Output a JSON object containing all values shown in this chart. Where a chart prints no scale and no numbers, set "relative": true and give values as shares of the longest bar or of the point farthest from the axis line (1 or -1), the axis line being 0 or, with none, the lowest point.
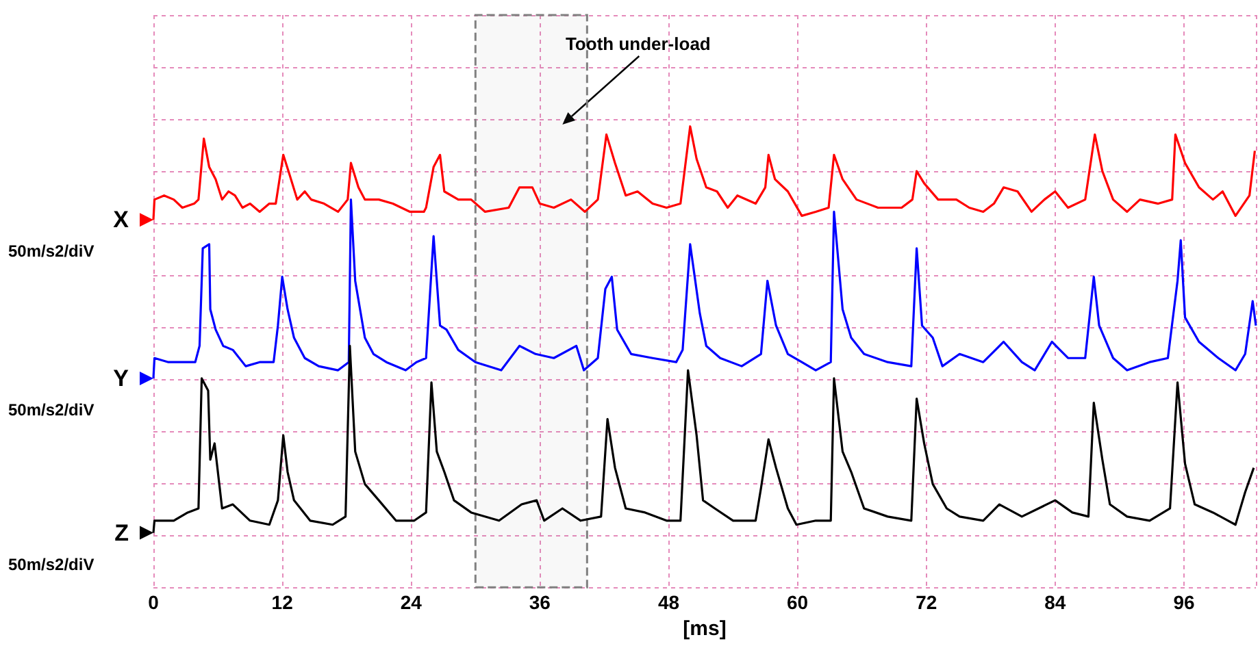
{
  "chart_data": {
    "type": "line",
    "relative": true,
    "xlabel": "[ms]",
    "xlim": [
      0,
      102.7
    ],
    "xticks": [
      0,
      12,
      24,
      36,
      48,
      60,
      72,
      84,
      96
    ],
    "grid": true,
    "bands": [
      {
        "axis": "x",
        "from": 30.0,
        "to": 40.4,
        "label": "Tooth under-load",
        "color": "#808080"
      }
    ],
    "legend": "left",
    "annotations": [
      "50m/s2/diV",
      "50m/s2/diV",
      "50m/s2/diV"
    ],
    "series": [
      {
        "name": "X",
        "color": "#ff0000",
        "x": [
          0,
          0.1,
          1.0,
          1.9,
          2.7,
          3.8,
          4.2,
          4.7,
          5.2,
          5.8,
          6.4,
          7.0,
          7.6,
          8.3,
          9.0,
          9.9,
          10.8,
          11.4,
          12.1,
          12.7,
          13.4,
          14.1,
          14.7,
          15.9,
          17.2,
          18.1,
          18.4,
          19.1,
          19.7,
          21.0,
          22.3,
          23.9,
          25.2,
          25.4,
          26.1,
          26.7,
          27.1,
          28.4,
          29.6,
          30.9,
          33.1,
          34.1,
          35.3,
          36.0,
          37.3,
          38.9,
          40.2,
          41.4,
          42.2,
          43.0,
          44.0,
          45.1,
          46.5,
          47.8,
          49.1,
          50.0,
          50.6,
          51.5,
          52.5,
          53.5,
          54.4,
          56.1,
          57.0,
          57.3,
          57.9,
          59.1,
          60.4,
          61.7,
          62.9,
          63.4,
          64.2,
          65.5,
          67.5,
          69.7,
          70.7,
          71.1,
          71.8,
          73.1,
          74.8,
          76.0,
          77.3,
          78.3,
          79.2,
          80.5,
          81.8,
          83.0,
          84.0,
          85.2,
          86.8,
          87.7,
          88.4,
          89.4,
          90.7,
          91.9,
          93.6,
          94.9,
          95.2,
          96.1,
          97.4,
          98.7,
          99.6,
          100.8,
          102.1,
          102.6
        ],
        "values": [
          0.77,
          0.82,
          0.83,
          0.82,
          0.8,
          0.81,
          0.82,
          0.97,
          0.9,
          0.87,
          0.82,
          0.84,
          0.83,
          0.8,
          0.81,
          0.79,
          0.81,
          0.81,
          0.93,
          0.88,
          0.82,
          0.84,
          0.82,
          0.81,
          0.79,
          0.82,
          0.91,
          0.85,
          0.82,
          0.82,
          0.81,
          0.79,
          0.79,
          0.8,
          0.9,
          0.93,
          0.84,
          0.82,
          0.82,
          0.79,
          0.8,
          0.85,
          0.85,
          0.81,
          0.8,
          0.82,
          0.79,
          0.82,
          0.98,
          0.91,
          0.83,
          0.84,
          0.81,
          0.8,
          0.81,
          1.0,
          0.92,
          0.85,
          0.84,
          0.8,
          0.83,
          0.81,
          0.85,
          0.93,
          0.87,
          0.84,
          0.78,
          0.79,
          0.8,
          0.93,
          0.87,
          0.82,
          0.8,
          0.8,
          0.82,
          0.89,
          0.86,
          0.82,
          0.82,
          0.8,
          0.79,
          0.81,
          0.85,
          0.84,
          0.79,
          0.82,
          0.84,
          0.8,
          0.82,
          0.98,
          0.89,
          0.82,
          0.79,
          0.82,
          0.81,
          0.82,
          0.98,
          0.91,
          0.85,
          0.82,
          0.84,
          0.78,
          0.83,
          0.94
        ]
      },
      {
        "name": "Y",
        "color": "#0000ff",
        "x": [
          0,
          0.1,
          1.4,
          2.7,
          3.9,
          4.3,
          4.6,
          5.2,
          5.3,
          5.8,
          6.5,
          7.4,
          8.6,
          9.9,
          11.2,
          11.6,
          12.0,
          12.5,
          13.1,
          14.1,
          15.4,
          17.2,
          18.2,
          18.4,
          18.8,
          19.7,
          20.5,
          21.7,
          23.5,
          24.5,
          25.4,
          26.1,
          26.7,
          27.3,
          28.4,
          30.0,
          32.4,
          34.1,
          35.6,
          37.3,
          39.4,
          40.1,
          41.4,
          42.1,
          42.7,
          43.2,
          44.5,
          46.5,
          48.7,
          49.3,
          50.0,
          50.9,
          51.5,
          52.8,
          54.8,
          56.6,
          57.2,
          58.0,
          59.1,
          60.4,
          61.7,
          63.1,
          63.4,
          64.2,
          65.0,
          66.2,
          68.4,
          70.6,
          71.1,
          71.6,
          72.6,
          73.5,
          75.1,
          77.3,
          79.2,
          80.9,
          82.1,
          83.7,
          85.2,
          86.8,
          87.6,
          88.1,
          89.4,
          90.7,
          92.8,
          94.5,
          95.4,
          95.7,
          96.1,
          97.4,
          99.2,
          100.8,
          101.7,
          102.4,
          102.7
        ],
        "values": [
          0.38,
          0.43,
          0.42,
          0.42,
          0.42,
          0.46,
          0.7,
          0.71,
          0.55,
          0.5,
          0.46,
          0.45,
          0.41,
          0.42,
          0.42,
          0.51,
          0.63,
          0.55,
          0.48,
          0.43,
          0.41,
          0.4,
          0.42,
          0.82,
          0.62,
          0.48,
          0.44,
          0.42,
          0.4,
          0.42,
          0.43,
          0.73,
          0.51,
          0.5,
          0.45,
          0.42,
          0.4,
          0.46,
          0.44,
          0.43,
          0.46,
          0.4,
          0.43,
          0.6,
          0.63,
          0.5,
          0.44,
          0.43,
          0.42,
          0.45,
          0.71,
          0.54,
          0.46,
          0.43,
          0.41,
          0.44,
          0.62,
          0.51,
          0.44,
          0.42,
          0.4,
          0.42,
          0.79,
          0.55,
          0.48,
          0.44,
          0.42,
          0.41,
          0.7,
          0.51,
          0.48,
          0.41,
          0.44,
          0.42,
          0.47,
          0.42,
          0.4,
          0.47,
          0.43,
          0.43,
          0.63,
          0.51,
          0.43,
          0.4,
          0.42,
          0.43,
          0.62,
          0.72,
          0.53,
          0.47,
          0.43,
          0.4,
          0.44,
          0.57,
          0.51
        ]
      },
      {
        "name": "Z",
        "color": "#000000",
        "x": [
          0,
          0.1,
          1.9,
          3.2,
          4.2,
          4.5,
          5.1,
          5.3,
          5.7,
          6.4,
          7.4,
          9.0,
          10.8,
          11.6,
          12.1,
          12.5,
          13.1,
          14.6,
          16.7,
          17.9,
          18.3,
          18.8,
          19.7,
          21.0,
          22.6,
          24.3,
          25.4,
          25.9,
          26.4,
          27.1,
          28.0,
          29.6,
          32.2,
          34.3,
          35.7,
          36.4,
          38.1,
          39.8,
          41.7,
          42.3,
          43.0,
          44.0,
          45.8,
          47.8,
          49.1,
          49.8,
          50.6,
          51.2,
          52.3,
          54.0,
          56.1,
          56.6,
          57.3,
          58.0,
          59.1,
          59.9,
          61.7,
          63.1,
          63.4,
          64.2,
          65.0,
          66.2,
          68.4,
          70.6,
          71.1,
          71.8,
          72.6,
          73.9,
          75.1,
          77.3,
          78.8,
          80.9,
          84.0,
          85.6,
          87.1,
          87.6,
          88.4,
          89.1,
          90.7,
          92.8,
          94.7,
          95.4,
          96.1,
          97.0,
          98.7,
          100.8,
          101.7,
          102.5
        ],
        "values": [
          0.0,
          0.03,
          0.03,
          0.05,
          0.06,
          0.38,
          0.35,
          0.18,
          0.22,
          0.06,
          0.07,
          0.03,
          0.02,
          0.08,
          0.24,
          0.15,
          0.08,
          0.03,
          0.02,
          0.04,
          0.46,
          0.2,
          0.12,
          0.08,
          0.03,
          0.03,
          0.05,
          0.37,
          0.2,
          0.15,
          0.08,
          0.05,
          0.03,
          0.07,
          0.08,
          0.03,
          0.06,
          0.03,
          0.04,
          0.28,
          0.16,
          0.06,
          0.05,
          0.03,
          0.03,
          0.4,
          0.24,
          0.08,
          0.06,
          0.03,
          0.03,
          0.11,
          0.23,
          0.16,
          0.06,
          0.02,
          0.03,
          0.03,
          0.38,
          0.2,
          0.15,
          0.06,
          0.04,
          0.03,
          0.33,
          0.22,
          0.12,
          0.06,
          0.04,
          0.03,
          0.07,
          0.04,
          0.08,
          0.05,
          0.04,
          0.32,
          0.18,
          0.07,
          0.04,
          0.03,
          0.06,
          0.37,
          0.17,
          0.07,
          0.05,
          0.02,
          0.1,
          0.16
        ]
      }
    ]
  }
}
